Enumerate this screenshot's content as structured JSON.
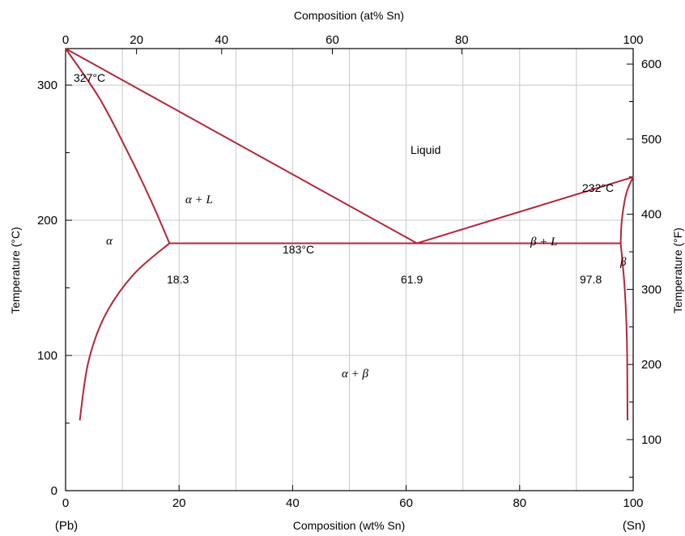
{
  "chart_data": {
    "type": "line",
    "title": "",
    "top_axis": {
      "label": "Composition (at% Sn)",
      "ticks": [
        "0",
        "20",
        "40",
        "60",
        "80",
        "100"
      ],
      "tick_positions_wt": [
        0,
        12.5,
        27.5,
        47.0,
        69.8,
        100
      ]
    },
    "bottom_axis": {
      "label": "Composition (wt% Sn)",
      "range": [
        0,
        100
      ],
      "ticks": [
        "0",
        "20",
        "40",
        "60",
        "80",
        "100"
      ],
      "gridlines": [
        10,
        20,
        30,
        40,
        50,
        60,
        70,
        80,
        90
      ],
      "left_end_label": "(Pb)",
      "right_end_label": "(Sn)"
    },
    "left_axis": {
      "label": "Temperature (°C)",
      "range": [
        0,
        327
      ],
      "ticks": [
        "0",
        "100",
        "200",
        "300"
      ],
      "minor": [
        50,
        150,
        250
      ],
      "gridlines": [
        100,
        200,
        300
      ]
    },
    "right_axis": {
      "label": "Temperature (°F)",
      "ticks": [
        "100",
        "200",
        "300",
        "400",
        "500",
        "600"
      ]
    },
    "annotations": {
      "pb_melt": "327°C",
      "sn_melt": "232°C",
      "eutectic_temp": "183°C",
      "alpha_limit": "18.3",
      "eutectic_comp": "61.9",
      "beta_limit": "97.8",
      "liquid": "Liquid",
      "alpha": "α",
      "alpha_L": "α + L",
      "beta_L": "β + L",
      "beta": "β",
      "alpha_beta": "α + β"
    },
    "series": [
      {
        "points": [
          [
            0,
            327
          ],
          [
            61.9,
            183
          ]
        ]
      },
      {
        "points": [
          [
            61.9,
            183
          ],
          [
            100,
            232
          ]
        ]
      },
      {
        "points": [
          [
            0,
            327
          ],
          [
            6,
            290
          ],
          [
            11,
            250
          ],
          [
            15,
            215
          ],
          [
            18.3,
            183
          ]
        ]
      },
      {
        "points": [
          [
            18.3,
            183
          ],
          [
            12,
            160
          ],
          [
            7,
            130
          ],
          [
            4,
            95
          ],
          [
            2.5,
            52
          ]
        ]
      },
      {
        "points": [
          [
            18.3,
            183
          ],
          [
            97.8,
            183
          ]
        ]
      },
      {
        "points": [
          [
            100,
            232
          ],
          [
            98.8,
            220
          ],
          [
            98,
            200
          ],
          [
            97.8,
            183
          ]
        ]
      },
      {
        "points": [
          [
            97.8,
            183
          ],
          [
            98.5,
            150
          ],
          [
            98.9,
            110
          ],
          [
            99,
            52
          ]
        ]
      }
    ]
  }
}
